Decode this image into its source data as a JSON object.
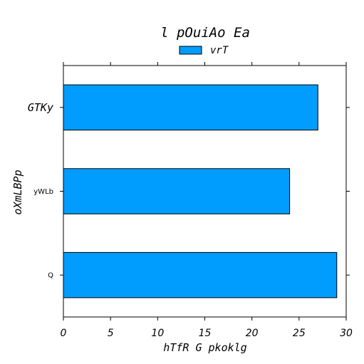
{
  "chart_data": {
    "type": "bar",
    "orientation": "horizontal",
    "title": "l pOuiAo Ea",
    "xlabel": "hTfR G pkoklg",
    "ylabel": "oXmLBPp",
    "categories": [
      "GTKy",
      "yWLb",
      "Q"
    ],
    "series": [
      {
        "name": "vrT",
        "values": [
          27,
          24,
          29
        ],
        "color": "#009dff"
      }
    ],
    "xlim": [
      0,
      30
    ],
    "xticks": [
      "0",
      "5",
      "10",
      "15",
      "20",
      "25",
      "30"
    ],
    "grid": false,
    "legend": "top-center"
  }
}
